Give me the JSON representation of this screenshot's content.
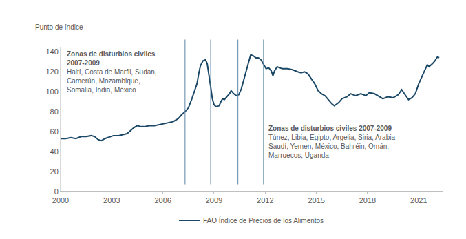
{
  "chart_data": {
    "type": "line",
    "y_label": "Punto de índice",
    "x": [
      2000.0,
      2000.3,
      2000.6,
      2000.9,
      2001.2,
      2001.5,
      2001.8,
      2002.0,
      2002.2,
      2002.4,
      2002.6,
      2002.9,
      2003.1,
      2003.4,
      2003.7,
      2003.9,
      2004.1,
      2004.3,
      2004.5,
      2004.7,
      2004.9,
      2005.2,
      2005.5,
      2005.8,
      2006.0,
      2006.3,
      2006.6,
      2006.9,
      2007.1,
      2007.3,
      2007.5,
      2007.7,
      2007.9,
      2008.0,
      2008.1,
      2008.2,
      2008.35,
      2008.5,
      2008.6,
      2008.7,
      2008.8,
      2008.9,
      2009.0,
      2009.1,
      2009.3,
      2009.4,
      2009.5,
      2009.6,
      2009.75,
      2009.9,
      2010.0,
      2010.15,
      2010.3,
      2010.45,
      2010.6,
      2010.75,
      2010.9,
      2011.05,
      2011.15,
      2011.3,
      2011.45,
      2011.6,
      2011.75,
      2011.9,
      2012.05,
      2012.2,
      2012.35,
      2012.45,
      2012.55,
      2012.7,
      2012.85,
      2013.0,
      2013.3,
      2013.6,
      2013.9,
      2014.1,
      2014.3,
      2014.5,
      2014.7,
      2014.9,
      2015.1,
      2015.3,
      2015.5,
      2015.7,
      2015.9,
      2016.05,
      2016.3,
      2016.5,
      2016.8,
      2017.0,
      2017.3,
      2017.6,
      2017.9,
      2018.1,
      2018.4,
      2018.7,
      2018.9,
      2019.2,
      2019.5,
      2019.8,
      2020.0,
      2020.2,
      2020.4,
      2020.6,
      2020.8,
      2021.0,
      2021.2,
      2021.4,
      2021.5,
      2021.6,
      2021.8,
      2021.95,
      2022.1,
      2022.2
    ],
    "series": [
      {
        "name": "FAO Índice de Precios de los Alimentos",
        "color": "#1b4866",
        "values": [
          53,
          53,
          54,
          53,
          55,
          55,
          56,
          55,
          52,
          51,
          53,
          55,
          56,
          56,
          57,
          58,
          61,
          64,
          66,
          65,
          65,
          66,
          66,
          67,
          68,
          69,
          70,
          73,
          77,
          80,
          84,
          93,
          103,
          108,
          118,
          126,
          131,
          132,
          128,
          118,
          105,
          93,
          87,
          85,
          86,
          90,
          93,
          92,
          95,
          98,
          101,
          98,
          96,
          97,
          103,
          113,
          122,
          131,
          137,
          136,
          134,
          134,
          132,
          127,
          123,
          124,
          121,
          116,
          121,
          125,
          124,
          123,
          123,
          122,
          120,
          119,
          120,
          118,
          113,
          108,
          101,
          98,
          96,
          92,
          88,
          86,
          89,
          93,
          95,
          98,
          96,
          98,
          96,
          99,
          98,
          95,
          93,
          95,
          94,
          97,
          102,
          97,
          92,
          94,
          98,
          108,
          116,
          124,
          127,
          125,
          128,
          131,
          135,
          134
        ]
      }
    ],
    "xlim": [
      2000,
      2022.4
    ],
    "xticks": [
      2000,
      2003,
      2006,
      2009,
      2012,
      2015,
      2018,
      2021
    ],
    "ylim": [
      0,
      145
    ],
    "yticks": [
      0,
      20,
      40,
      60,
      80,
      100,
      120,
      140
    ],
    "vlines": [
      2007.3,
      2008.8,
      2010.4,
      2011.9
    ],
    "vline_color": "#5b86a6",
    "annotations": [
      {
        "heading": [
          "Zonas de disturbios civiles",
          "2007-2009"
        ],
        "lines": [
          "Haití, Costa de Marfil, Sudan,",
          "Camerún, Mozambique,",
          "Somalia, India, México"
        ]
      },
      {
        "heading": [
          "Zonas de disturbios civiles 2007-2009"
        ],
        "lines": [
          "Túnez, Libia, Egipto, Argelia, Siria, Arabia",
          "Saudí, Yemen, México, Bahréin, Omán,",
          "Marruecos, Uganda"
        ]
      }
    ],
    "grid": false,
    "legend": "bottom"
  }
}
